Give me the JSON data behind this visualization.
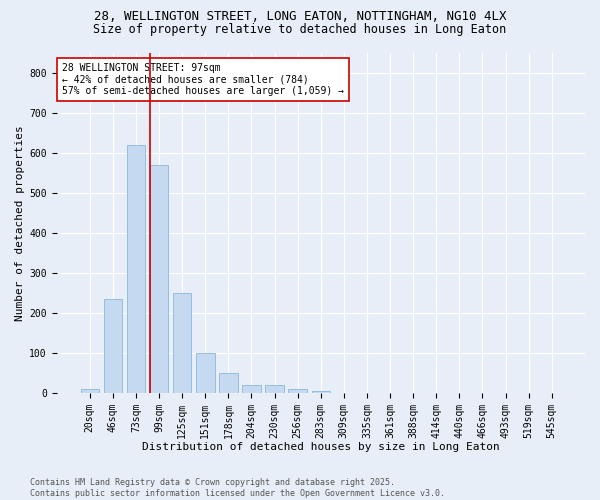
{
  "title1": "28, WELLINGTON STREET, LONG EATON, NOTTINGHAM, NG10 4LX",
  "title2": "Size of property relative to detached houses in Long Eaton",
  "xlabel": "Distribution of detached houses by size in Long Eaton",
  "ylabel": "Number of detached properties",
  "bar_labels": [
    "20sqm",
    "46sqm",
    "73sqm",
    "99sqm",
    "125sqm",
    "151sqm",
    "178sqm",
    "204sqm",
    "230sqm",
    "256sqm",
    "283sqm",
    "309sqm",
    "335sqm",
    "361sqm",
    "388sqm",
    "414sqm",
    "440sqm",
    "466sqm",
    "493sqm",
    "519sqm",
    "545sqm"
  ],
  "bar_values": [
    10,
    235,
    620,
    570,
    250,
    100,
    50,
    22,
    22,
    10,
    5,
    2,
    0,
    0,
    0,
    0,
    0,
    0,
    0,
    0,
    0
  ],
  "bar_color": "#c5d9f1",
  "bar_edge_color": "#7bafd4",
  "vline_color": "#cc0000",
  "annotation_text": "28 WELLINGTON STREET: 97sqm\n← 42% of detached houses are smaller (784)\n57% of semi-detached houses are larger (1,059) →",
  "annotation_box_color": "#ffffff",
  "annotation_box_edge": "#cc0000",
  "ylim": [
    0,
    850
  ],
  "yticks": [
    0,
    100,
    200,
    300,
    400,
    500,
    600,
    700,
    800
  ],
  "bg_color": "#e8eef7",
  "footer": "Contains HM Land Registry data © Crown copyright and database right 2025.\nContains public sector information licensed under the Open Government Licence v3.0.",
  "title1_fontsize": 9,
  "title2_fontsize": 8.5,
  "xlabel_fontsize": 8,
  "ylabel_fontsize": 8,
  "tick_fontsize": 7,
  "annotation_fontsize": 7,
  "footer_fontsize": 6
}
